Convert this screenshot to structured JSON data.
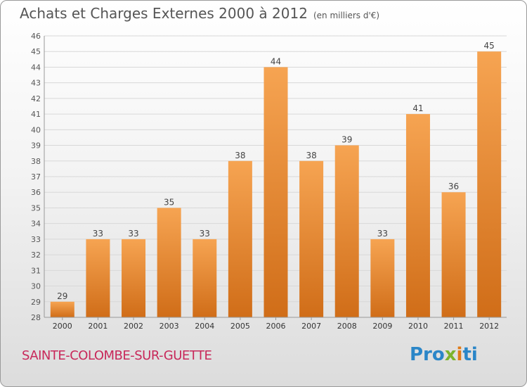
{
  "header": {
    "title": "Achats et Charges Externes 2000 à 2012",
    "unit": "(en milliers d'€)"
  },
  "footer": {
    "place": "SAINTE-COLOMBE-SUR-GUETTE",
    "logo": [
      "Pro",
      "x",
      "i",
      "ti"
    ]
  },
  "colors": {
    "bar_light": "#f6a452",
    "bar_dark": "#d06d18",
    "place": "#c8285a"
  },
  "chart_data": {
    "type": "bar",
    "title": "Achats et Charges Externes 2000 à 2012",
    "subtitle": "(en milliers d'€)",
    "categories": [
      "2000",
      "2001",
      "2002",
      "2003",
      "2004",
      "2005",
      "2006",
      "2007",
      "2008",
      "2009",
      "2010",
      "2011",
      "2012"
    ],
    "values": [
      29,
      33,
      33,
      35,
      33,
      38,
      44,
      38,
      39,
      33,
      41,
      36,
      45
    ],
    "ylim": [
      28,
      46
    ],
    "yticks": [
      28,
      29,
      30,
      31,
      32,
      33,
      34,
      35,
      36,
      37,
      38,
      39,
      40,
      41,
      42,
      43,
      44,
      45,
      46
    ],
    "grid": true,
    "legend": "none"
  }
}
